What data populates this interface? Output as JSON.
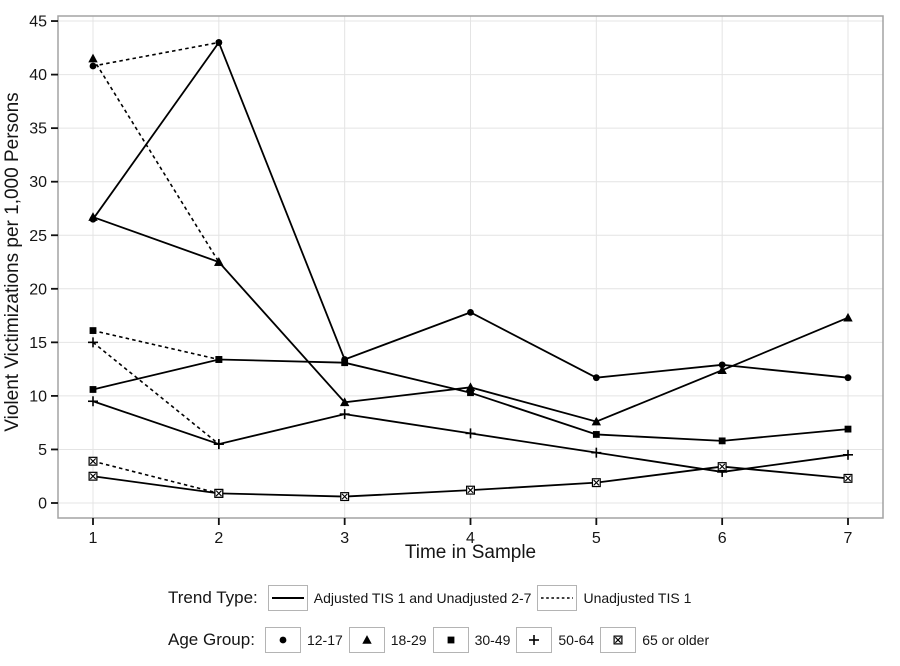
{
  "chart_data": {
    "type": "line",
    "title": "",
    "xlabel": "Time in Sample",
    "ylabel": "Violent Victimizations per 1,000 Persons",
    "x_ticks": [
      1,
      2,
      3,
      4,
      5,
      6,
      7
    ],
    "y_ticks": [
      0,
      5,
      10,
      15,
      20,
      25,
      30,
      35,
      40,
      45
    ],
    "xlim": [
      0.72,
      7.28
    ],
    "ylim": [
      -1.4,
      45.4
    ],
    "grid": "both",
    "legend_position": "bottom",
    "series": [
      {
        "name": "12-17",
        "marker": "circle",
        "linetype": "solid",
        "x": [
          1,
          2,
          3,
          4,
          5,
          6,
          7
        ],
        "values": [
          26.5,
          43.0,
          13.4,
          17.8,
          11.7,
          12.9,
          11.7
        ]
      },
      {
        "name": "18-29",
        "marker": "triangle",
        "linetype": "solid",
        "x": [
          1,
          2,
          3,
          4,
          5,
          6,
          7
        ],
        "values": [
          26.7,
          22.5,
          9.4,
          10.8,
          7.6,
          12.4,
          17.3
        ]
      },
      {
        "name": "30-49",
        "marker": "square",
        "linetype": "solid",
        "x": [
          1,
          2,
          3,
          4,
          5,
          6,
          7
        ],
        "values": [
          10.6,
          13.4,
          13.1,
          10.3,
          6.4,
          5.8,
          6.9
        ]
      },
      {
        "name": "50-64",
        "marker": "plus",
        "linetype": "solid",
        "x": [
          1,
          2,
          3,
          4,
          5,
          6,
          7
        ],
        "values": [
          9.5,
          5.5,
          8.3,
          6.5,
          4.7,
          2.9,
          4.5
        ]
      },
      {
        "name": "65 or older",
        "marker": "boxed-x",
        "linetype": "solid",
        "x": [
          1,
          2,
          3,
          4,
          5,
          6,
          7
        ],
        "values": [
          2.5,
          0.9,
          0.6,
          1.2,
          1.9,
          3.4,
          2.3
        ]
      }
    ],
    "dashed_series": [
      {
        "name": "12-17",
        "marker": "circle",
        "linetype": "dashed",
        "x": [
          1,
          2
        ],
        "values": [
          40.8,
          43.0
        ]
      },
      {
        "name": "18-29",
        "marker": "triangle",
        "linetype": "dashed",
        "x": [
          1,
          2
        ],
        "values": [
          41.5,
          22.5
        ]
      },
      {
        "name": "30-49",
        "marker": "square",
        "linetype": "dashed",
        "x": [
          1,
          2
        ],
        "values": [
          16.1,
          13.4
        ]
      },
      {
        "name": "50-64",
        "marker": "plus",
        "linetype": "dashed",
        "x": [
          1,
          2
        ],
        "values": [
          15.0,
          5.5
        ]
      },
      {
        "name": "65 or older",
        "marker": "boxed-x",
        "linetype": "dashed",
        "x": [
          1,
          2
        ],
        "values": [
          3.9,
          0.9
        ]
      }
    ]
  },
  "legend": {
    "trend": {
      "label": "Trend Type:",
      "entries": [
        {
          "linetype": "solid",
          "label": "Adjusted TIS 1 and Unadjusted 2-7"
        },
        {
          "linetype": "dashed",
          "label": "Unadjusted TIS 1"
        }
      ]
    },
    "age": {
      "label": "Age Group:",
      "entries": [
        {
          "marker": "circle",
          "label": "12-17"
        },
        {
          "marker": "triangle",
          "label": "18-29"
        },
        {
          "marker": "square",
          "label": "30-49"
        },
        {
          "marker": "plus",
          "label": "50-64"
        },
        {
          "marker": "boxed-x",
          "label": "65 or older"
        }
      ]
    }
  },
  "colors": {
    "line": "#000000",
    "grid": "#e4e4e4",
    "panel_border": "#a3a3a3",
    "text": "#151515",
    "key_box_border": "#b4b4b4",
    "background": "#ffffff"
  }
}
